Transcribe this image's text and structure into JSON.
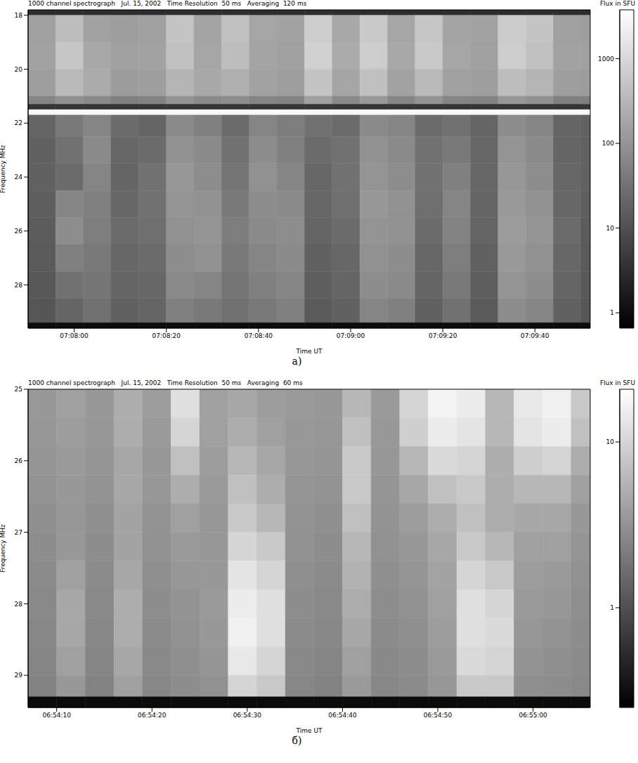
{
  "chart_data": [
    {
      "type": "heatmap",
      "panel_label": "a)",
      "title": "1000 channel spectrograph   Jul. 15, 2002   Time Resolution  50 ms   Averaging  120 ms",
      "x_label": "Time UT",
      "y_label": "Frequency MHz",
      "xlim": [
        25670,
        25792
      ],
      "xticks": [
        {
          "value": 25680,
          "label": "07:08:00"
        },
        {
          "value": 25700,
          "label": "07:08:20"
        },
        {
          "value": 25720,
          "label": "07:08:40"
        },
        {
          "value": 25740,
          "label": "07:09:00"
        },
        {
          "value": 25760,
          "label": "07:09:20"
        },
        {
          "value": 25780,
          "label": "07:09:40"
        }
      ],
      "ylim": [
        17.8,
        29.6
      ],
      "yticks": [
        18,
        20,
        22,
        24,
        26,
        28
      ],
      "x_edges": [
        25670,
        25676,
        25682,
        25688,
        25694,
        25700,
        25706,
        25712,
        25718,
        25724,
        25730,
        25736,
        25742,
        25748,
        25754,
        25760,
        25766,
        25772,
        25778,
        25784,
        25790,
        25792
      ],
      "y_edges": [
        17.8,
        18.0,
        19.0,
        20.0,
        21.0,
        21.3,
        21.5,
        21.7,
        22.5,
        23.5,
        24.5,
        25.5,
        26.5,
        27.5,
        28.5,
        29.4,
        29.6
      ],
      "cells": [
        [
          3,
          3,
          3,
          3,
          3,
          3,
          3,
          3,
          3,
          3,
          3,
          3,
          3,
          3,
          3,
          3,
          3,
          3,
          3,
          3,
          3
        ],
        [
          150,
          400,
          160,
          140,
          150,
          500,
          170,
          450,
          180,
          160,
          700,
          200,
          600,
          180,
          550,
          170,
          160,
          650,
          500,
          150,
          140
        ],
        [
          160,
          550,
          200,
          150,
          160,
          450,
          180,
          400,
          170,
          150,
          800,
          220,
          700,
          200,
          600,
          180,
          150,
          700,
          450,
          160,
          150
        ],
        [
          140,
          350,
          220,
          130,
          140,
          300,
          200,
          250,
          160,
          140,
          500,
          180,
          450,
          160,
          350,
          150,
          140,
          400,
          300,
          140,
          130
        ],
        [
          60,
          90,
          70,
          50,
          55,
          100,
          70,
          80,
          60,
          55,
          150,
          70,
          120,
          60,
          100,
          60,
          55,
          110,
          90,
          50,
          50
        ],
        [
          4,
          4,
          4,
          4,
          4,
          4,
          4,
          4,
          4,
          4,
          4,
          4,
          4,
          4,
          4,
          4,
          4,
          4,
          4,
          4,
          4
        ],
        [
          3000,
          3000,
          3000,
          3000,
          3000,
          3000,
          3000,
          3000,
          3000,
          3000,
          3000,
          3000,
          3000,
          3000,
          3000,
          3000,
          3000,
          3000,
          3000,
          3000,
          3000
        ],
        [
          20,
          40,
          60,
          25,
          20,
          70,
          50,
          25,
          60,
          45,
          30,
          25,
          70,
          60,
          25,
          30,
          20,
          80,
          60,
          20,
          18
        ],
        [
          18,
          30,
          70,
          22,
          25,
          90,
          70,
          30,
          80,
          50,
          25,
          30,
          90,
          70,
          30,
          40,
          22,
          100,
          70,
          20,
          18
        ],
        [
          18,
          25,
          60,
          20,
          30,
          110,
          80,
          35,
          90,
          60,
          22,
          30,
          100,
          80,
          30,
          50,
          22,
          110,
          80,
          22,
          18
        ],
        [
          16,
          60,
          50,
          22,
          30,
          100,
          90,
          40,
          80,
          70,
          22,
          28,
          110,
          90,
          28,
          60,
          20,
          120,
          90,
          22,
          16
        ],
        [
          15,
          80,
          45,
          25,
          28,
          90,
          100,
          45,
          70,
          80,
          20,
          25,
          100,
          90,
          25,
          55,
          20,
          130,
          100,
          25,
          15
        ],
        [
          14,
          50,
          40,
          22,
          25,
          80,
          90,
          40,
          60,
          70,
          18,
          22,
          90,
          80,
          22,
          45,
          18,
          120,
          90,
          22,
          14
        ],
        [
          13,
          30,
          35,
          20,
          22,
          70,
          60,
          35,
          50,
          60,
          16,
          20,
          80,
          70,
          20,
          40,
          16,
          100,
          80,
          20,
          13
        ],
        [
          12,
          20,
          30,
          18,
          20,
          50,
          40,
          30,
          40,
          50,
          14,
          18,
          60,
          50,
          18,
          30,
          14,
          80,
          60,
          18,
          12
        ],
        [
          1,
          1,
          1,
          1,
          1,
          1,
          1,
          1,
          1,
          1,
          1,
          1,
          1,
          1,
          1,
          1,
          1,
          1,
          1,
          1,
          1
        ]
      ],
      "colorbar": {
        "label": "Flux in SFU",
        "range": [
          0.66,
          3760
        ],
        "ticks": [
          1,
          10,
          100,
          1000
        ]
      },
      "log": "colorbar"
    },
    {
      "type": "heatmap",
      "panel_label": "б)",
      "title": "1000 channel spectrograph   Jul. 15, 2002   Time Resolution  50 ms   Averaging  60 ms",
      "x_label": "Time UT",
      "y_label": "Frequency MHz",
      "xlim": [
        24847,
        24906
      ],
      "xticks": [
        {
          "value": 24850,
          "label": "06:54:10"
        },
        {
          "value": 24860,
          "label": "06:54:20"
        },
        {
          "value": 24870,
          "label": "06:54:30"
        },
        {
          "value": 24880,
          "label": "06:54:40"
        },
        {
          "value": 24890,
          "label": "06:54:50"
        },
        {
          "value": 24900,
          "label": "06:55:00"
        }
      ],
      "ylim": [
        25,
        29.45
      ],
      "yticks": [
        25,
        26,
        27,
        28,
        29
      ],
      "x_edges": [
        24847,
        24850,
        24853,
        24856,
        24859,
        24862,
        24865,
        24868,
        24871,
        24874,
        24877,
        24880,
        24883,
        24886,
        24889,
        24892,
        24895,
        24898,
        24901,
        24904,
        24906
      ],
      "y_edges": [
        25,
        25.4,
        25.8,
        26.2,
        26.6,
        27,
        27.4,
        27.8,
        28.2,
        28.6,
        29,
        29.3,
        29.45
      ],
      "cells": [
        [
          3.5,
          4,
          3.5,
          5,
          3.8,
          12,
          4,
          4.5,
          3.8,
          3.6,
          3.5,
          6,
          3.6,
          10,
          17,
          15,
          6,
          14,
          16,
          8
        ],
        [
          3.4,
          3.8,
          3.4,
          5,
          3.6,
          10,
          4,
          5,
          4,
          3.5,
          3.4,
          7,
          3.5,
          9,
          15,
          13,
          6,
          13,
          15,
          7
        ],
        [
          3.3,
          3.6,
          3.3,
          4.5,
          3.5,
          7,
          3.8,
          6,
          4.5,
          3.4,
          3.3,
          8,
          3.4,
          6,
          11,
          10,
          5,
          9,
          10,
          5
        ],
        [
          3.2,
          3.5,
          3.2,
          4.5,
          3.4,
          5,
          3.6,
          7,
          5,
          3.3,
          3.2,
          8,
          3.3,
          4.5,
          7,
          8,
          5,
          6,
          6,
          4
        ],
        [
          3,
          3.4,
          3,
          4.2,
          3.2,
          4,
          3.4,
          8,
          6,
          3.2,
          3,
          7,
          3.2,
          3.8,
          5,
          7,
          5,
          4.5,
          4.5,
          3.5
        ],
        [
          2.9,
          3.5,
          2.9,
          4.2,
          3.1,
          3.6,
          3.4,
          10,
          8,
          3.1,
          2.9,
          6,
          3.1,
          3.5,
          4.5,
          8,
          6,
          4,
          4,
          3.3
        ],
        [
          2.8,
          4,
          2.8,
          4.5,
          3,
          3.4,
          3.5,
          13,
          10,
          3,
          2.8,
          5.5,
          3,
          3.3,
          4.2,
          10,
          8,
          3.8,
          3.6,
          3.1
        ],
        [
          2.7,
          4.5,
          2.7,
          5,
          2.9,
          3.2,
          3.6,
          15,
          12,
          2.9,
          2.7,
          5,
          2.9,
          3.1,
          4,
          12,
          10,
          3.6,
          3.4,
          3
        ],
        [
          2.6,
          4.5,
          2.6,
          5,
          2.8,
          3.1,
          3.5,
          16,
          12,
          2.8,
          2.6,
          4.5,
          2.8,
          3,
          3.8,
          12,
          11,
          3.4,
          3.2,
          2.9
        ],
        [
          2.5,
          4,
          2.5,
          4.5,
          2.7,
          3,
          3.3,
          14,
          10,
          2.7,
          2.5,
          4,
          2.7,
          2.9,
          3.6,
          11,
          10,
          3.2,
          3,
          2.8
        ],
        [
          2.4,
          3.5,
          2.4,
          4,
          2.6,
          2.9,
          3.1,
          10,
          8,
          2.6,
          2.4,
          3.6,
          2.6,
          2.8,
          3.4,
          8,
          8,
          3,
          2.9,
          2.7
        ],
        [
          0.3,
          0.3,
          0.3,
          0.3,
          0.3,
          0.3,
          0.3,
          0.3,
          0.3,
          0.3,
          0.3,
          0.3,
          0.3,
          0.3,
          0.3,
          0.3,
          0.3,
          0.3,
          0.3,
          0.3
        ]
      ],
      "colorbar": {
        "label": "Flux in SFU",
        "range": [
          0.25,
          20.8
        ],
        "ticks": [
          1,
          10
        ]
      },
      "log": "colorbar"
    }
  ]
}
